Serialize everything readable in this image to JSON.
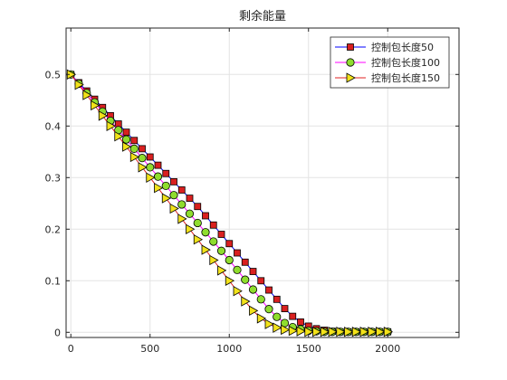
{
  "chart_data": {
    "type": "line",
    "title": "剩余能量",
    "xlabel": "",
    "ylabel": "",
    "xlim": [
      -30,
      2450
    ],
    "ylim": [
      -0.01,
      0.59
    ],
    "xticks": [
      0,
      500,
      1000,
      1500,
      2000
    ],
    "yticks": [
      0,
      0.1,
      0.2,
      0.3,
      0.4,
      0.5
    ],
    "xtick_labels": [
      "0",
      "500",
      "1000",
      "1500",
      "2000"
    ],
    "ytick_labels": [
      "0",
      "0.1",
      "0.2",
      "0.3",
      "0.4",
      "0.5"
    ],
    "grid": true,
    "legend_position": "top-right",
    "x": [
      0,
      50,
      100,
      150,
      200,
      250,
      300,
      350,
      400,
      450,
      500,
      550,
      600,
      650,
      700,
      750,
      800,
      850,
      900,
      950,
      1000,
      1050,
      1100,
      1150,
      1200,
      1250,
      1300,
      1350,
      1400,
      1450,
      1500,
      1550,
      1600,
      1650,
      1700,
      1750,
      1800,
      1850,
      1900,
      1950,
      2000
    ],
    "series": [
      {
        "name": "控制包长度50",
        "color": "#0000ff",
        "marker": "square",
        "marker_fill": "#d92020",
        "values": [
          0.5,
          0.484,
          0.468,
          0.452,
          0.436,
          0.42,
          0.404,
          0.388,
          0.372,
          0.356,
          0.34,
          0.324,
          0.308,
          0.292,
          0.276,
          0.26,
          0.244,
          0.226,
          0.208,
          0.19,
          0.172,
          0.154,
          0.136,
          0.118,
          0.1,
          0.082,
          0.064,
          0.046,
          0.031,
          0.02,
          0.012,
          0.007,
          0.004,
          0.002,
          0.001,
          0.001,
          0.001,
          0.001,
          0.001,
          0.001,
          0.001
        ]
      },
      {
        "name": "控制包长度100",
        "color": "#ff00ff",
        "marker": "circle",
        "marker_fill": "#8fdd2e",
        "values": [
          0.5,
          0.482,
          0.464,
          0.446,
          0.428,
          0.41,
          0.392,
          0.374,
          0.356,
          0.338,
          0.32,
          0.302,
          0.284,
          0.266,
          0.248,
          0.23,
          0.212,
          0.194,
          0.176,
          0.158,
          0.14,
          0.121,
          0.102,
          0.083,
          0.064,
          0.045,
          0.03,
          0.018,
          0.01,
          0.006,
          0.003,
          0.002,
          0.001,
          0.001,
          0.001,
          0.001,
          0.001,
          0.001,
          0.001,
          0.001,
          0.001
        ]
      },
      {
        "name": "控制包长度150",
        "color": "#e02020",
        "marker": "triangle-right",
        "marker_fill": "#f2e21a",
        "values": [
          0.5,
          0.48,
          0.46,
          0.44,
          0.42,
          0.4,
          0.38,
          0.36,
          0.34,
          0.32,
          0.3,
          0.28,
          0.26,
          0.24,
          0.22,
          0.2,
          0.18,
          0.16,
          0.14,
          0.12,
          0.1,
          0.08,
          0.06,
          0.042,
          0.027,
          0.016,
          0.009,
          0.005,
          0.003,
          0.002,
          0.001,
          0.001,
          0.001,
          0.001,
          0.001,
          0.001,
          0.001,
          0.001,
          0.001,
          0.001,
          0.001
        ]
      }
    ]
  }
}
